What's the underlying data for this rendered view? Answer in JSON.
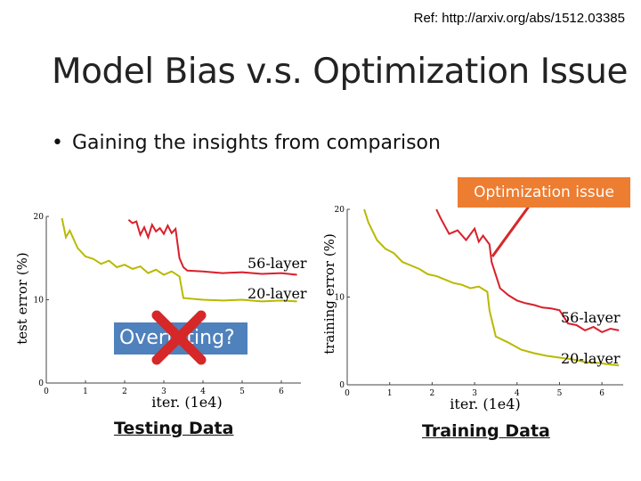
{
  "ref": "Ref: http://arxiv.org/abs/1512.03385",
  "title": "Model Bias v.s. Optimization Issue",
  "bullet": "Gaining the insights from comparison",
  "callout": "Optimization issue",
  "overfitting_label": "Overfitting?",
  "captions": {
    "left": "Testing Data",
    "right": "Training Data"
  },
  "colors": {
    "series_56": "#d9202b",
    "series_20": "#b9b900",
    "callout": "#ed7d31",
    "overfit": "#4f81bd",
    "xmark": "#d62828"
  },
  "chart_data": [
    {
      "type": "line",
      "xlabel": "iter. (1e4)",
      "ylabel": "test error (%)",
      "xlim": [
        0,
        6.5
      ],
      "ylim": [
        0,
        20
      ],
      "xticks": [
        0,
        1,
        2,
        3,
        4,
        5,
        6
      ],
      "yticks": [
        0,
        10,
        20
      ],
      "series": [
        {
          "name": "56-layer",
          "x": [
            2.1,
            2.2,
            2.3,
            2.4,
            2.5,
            2.6,
            2.7,
            2.8,
            2.9,
            3.0,
            3.1,
            3.2,
            3.3,
            3.4,
            3.5,
            3.6,
            4.0,
            4.5,
            5.0,
            5.5,
            6.0,
            6.4
          ],
          "y": [
            19.6,
            19.2,
            19.4,
            17.8,
            18.7,
            17.5,
            19.0,
            18.2,
            18.6,
            17.9,
            18.9,
            18.0,
            18.5,
            15.0,
            13.9,
            13.5,
            13.4,
            13.2,
            13.3,
            13.1,
            13.2,
            13.0
          ]
        },
        {
          "name": "20-layer",
          "x": [
            0.4,
            0.5,
            0.6,
            0.8,
            1.0,
            1.2,
            1.4,
            1.6,
            1.8,
            2.0,
            2.2,
            2.4,
            2.6,
            2.8,
            3.0,
            3.2,
            3.4,
            3.5,
            4.0,
            4.5,
            5.0,
            5.5,
            6.0,
            6.4
          ],
          "y": [
            19.8,
            17.5,
            18.3,
            16.2,
            15.2,
            14.9,
            14.3,
            14.7,
            13.9,
            14.2,
            13.7,
            14.0,
            13.2,
            13.6,
            13.0,
            13.4,
            12.8,
            10.2,
            10.0,
            9.9,
            10.0,
            9.8,
            9.9,
            9.8
          ]
        }
      ]
    },
    {
      "type": "line",
      "xlabel": "iter. (1e4)",
      "ylabel": "training error (%)",
      "xlim": [
        0,
        6.5
      ],
      "ylim": [
        0,
        20
      ],
      "xticks": [
        0,
        1,
        2,
        3,
        4,
        5,
        6
      ],
      "yticks": [
        0,
        10,
        20
      ],
      "series": [
        {
          "name": "56-layer",
          "x": [
            2.1,
            2.2,
            2.4,
            2.6,
            2.8,
            3.0,
            3.1,
            3.2,
            3.35,
            3.4,
            3.6,
            3.8,
            4.0,
            4.2,
            4.4,
            4.6,
            4.8,
            5.0,
            5.2,
            5.4,
            5.6,
            5.8,
            6.0,
            6.2,
            6.4
          ],
          "y": [
            20,
            19.0,
            17.2,
            17.6,
            16.5,
            17.8,
            16.3,
            17.0,
            16.0,
            14.0,
            11.0,
            10.2,
            9.6,
            9.3,
            9.1,
            8.8,
            8.7,
            8.5,
            7.0,
            6.8,
            6.2,
            6.6,
            6.0,
            6.4,
            6.2
          ]
        },
        {
          "name": "20-layer",
          "x": [
            0.4,
            0.5,
            0.7,
            0.9,
            1.1,
            1.3,
            1.5,
            1.7,
            1.9,
            2.1,
            2.3,
            2.5,
            2.7,
            2.9,
            3.1,
            3.3,
            3.35,
            3.5,
            3.8,
            4.1,
            4.4,
            4.7,
            5.0,
            5.3,
            5.6,
            5.9,
            6.2,
            6.4
          ],
          "y": [
            20,
            18.5,
            16.5,
            15.5,
            15.0,
            14.0,
            13.6,
            13.2,
            12.6,
            12.4,
            12.0,
            11.6,
            11.4,
            11.0,
            11.2,
            10.6,
            8.5,
            5.5,
            4.8,
            4.0,
            3.6,
            3.3,
            3.1,
            2.9,
            2.6,
            2.5,
            2.3,
            2.2
          ]
        }
      ]
    }
  ]
}
